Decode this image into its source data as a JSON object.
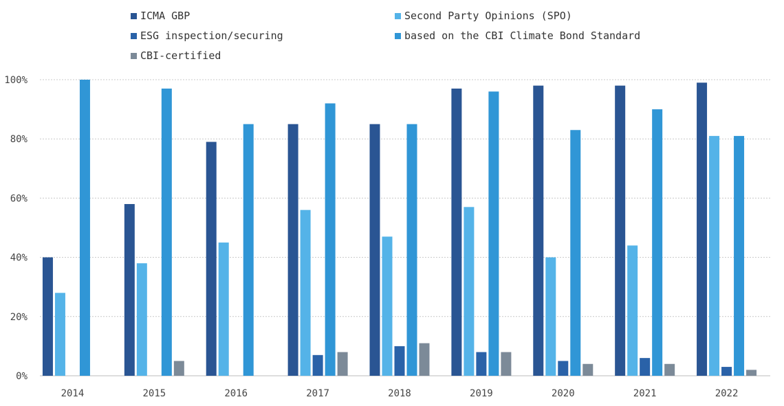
{
  "chart_data": {
    "type": "bar",
    "categories": [
      "2014",
      "2015",
      "2016",
      "2017",
      "2018",
      "2019",
      "2020",
      "2021",
      "2022"
    ],
    "series": [
      {
        "name": "ICMA GBP",
        "color": "#2a5593",
        "values": [
          40,
          58,
          79,
          85,
          85,
          97,
          98,
          98,
          99
        ]
      },
      {
        "name": "Second Party Opinions (SPO)",
        "color": "#54b3e8",
        "values": [
          28,
          38,
          45,
          56,
          47,
          57,
          40,
          44,
          81
        ]
      },
      {
        "name": "ESG inspection/securing",
        "color": "#2a62a8",
        "values": [
          0,
          0,
          0,
          7,
          10,
          8,
          5,
          6,
          3
        ]
      },
      {
        "name": "based on the CBI Climate Bond Standard",
        "color": "#3096d6",
        "values": [
          100,
          97,
          85,
          92,
          85,
          96,
          83,
          90,
          81
        ]
      },
      {
        "name": "CBI-certified",
        "color": "#7c8a98",
        "values": [
          0,
          5,
          0,
          8,
          11,
          8,
          4,
          4,
          2
        ]
      }
    ],
    "yticks": [
      "0%",
      "20%",
      "40%",
      "60%",
      "80%",
      "100%"
    ],
    "ylim": [
      0,
      100
    ],
    "grid": true,
    "legend_position": "top"
  }
}
